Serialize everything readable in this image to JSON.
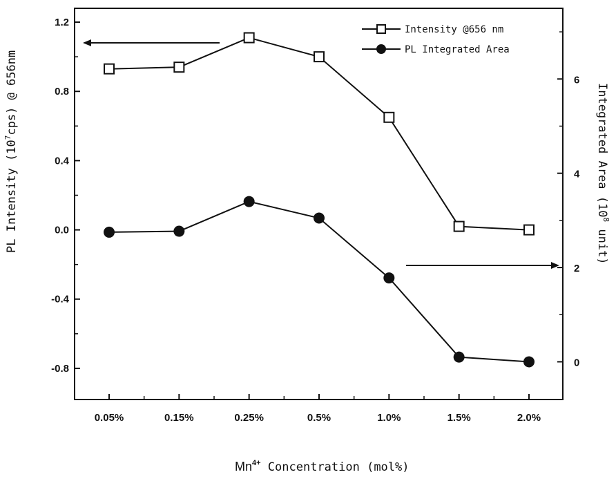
{
  "chart_data": {
    "type": "line",
    "categories": [
      "0.05%",
      "0.15%",
      "0.25%",
      "0.5%",
      "1.0%",
      "1.5%",
      "2.0%"
    ],
    "series": [
      {
        "name": "Intensity @656 nm",
        "axis": "left",
        "marker": "open-square",
        "values": [
          0.93,
          0.94,
          1.11,
          1.0,
          0.65,
          0.02,
          0.0
        ]
      },
      {
        "name": "PL Integrated Area",
        "axis": "right",
        "marker": "filled-circle",
        "values": [
          2.75,
          2.77,
          3.4,
          3.05,
          1.78,
          0.1,
          0.0
        ]
      }
    ],
    "y_left": {
      "label_parts": [
        "PL Intensity (10",
        "7",
        "cps) @ 656nm"
      ],
      "ylim": [
        -0.98,
        1.28
      ],
      "ticks": [
        -0.8,
        -0.4,
        0.0,
        0.4,
        0.8,
        1.2
      ],
      "tick_labels": [
        "-0.8",
        "-0.4",
        "0.0",
        "0.4",
        "0.8",
        "1.2"
      ]
    },
    "y_right": {
      "label_parts": [
        "Integrated Area (10",
        "8",
        " unit)"
      ],
      "ylim": [
        -0.8,
        7.5
      ],
      "ticks": [
        0,
        2,
        4,
        6
      ],
      "tick_labels": [
        "0",
        "2",
        "4",
        "6"
      ]
    },
    "xlabel_parts": [
      "Mn",
      "4+",
      " Concentration (mol%)"
    ],
    "legend_position": "top-right",
    "grid": false,
    "annotations": [
      {
        "type": "arrow",
        "direction": "left",
        "meaning": "left axis for Intensity @656 nm"
      },
      {
        "type": "arrow",
        "direction": "right",
        "meaning": "right axis for PL Integrated Area"
      }
    ]
  }
}
